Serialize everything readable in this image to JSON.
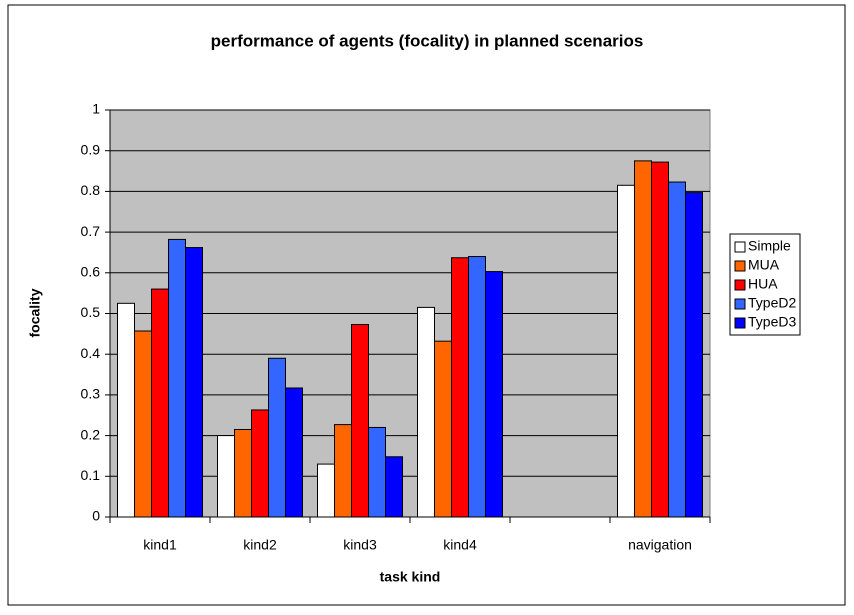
{
  "chart_data": {
    "type": "bar",
    "title": "performance of agents (focality) in planned scenarios",
    "x_label": "task kind",
    "y_label": "focality",
    "categories": [
      "kind1",
      "kind2",
      "kind3",
      "kind4",
      null,
      "navigation"
    ],
    "series": [
      {
        "name": "Simple",
        "color": "#ffffff",
        "values": [
          0.525,
          0.2,
          0.13,
          0.515,
          null,
          0.815
        ]
      },
      {
        "name": "MUA",
        "color": "#ff6600",
        "values": [
          0.457,
          0.215,
          0.227,
          0.432,
          null,
          0.875
        ]
      },
      {
        "name": "HUA",
        "color": "#ff0000",
        "values": [
          0.56,
          0.263,
          0.473,
          0.637,
          null,
          0.872
        ]
      },
      {
        "name": "TypeD2",
        "color": "#3366ff",
        "values": [
          0.682,
          0.39,
          0.22,
          0.64,
          null,
          0.823
        ]
      },
      {
        "name": "TypeD3",
        "color": "#0000ff",
        "values": [
          0.662,
          0.317,
          0.148,
          0.603,
          null,
          0.797
        ]
      }
    ],
    "ylim": [
      0,
      1
    ],
    "yticks": [
      0,
      0.1,
      0.2,
      0.3,
      0.4,
      0.5,
      0.6,
      0.7,
      0.8,
      0.9,
      1
    ],
    "grid": true,
    "plot_background": "#c0c0c0",
    "legend": "right"
  }
}
